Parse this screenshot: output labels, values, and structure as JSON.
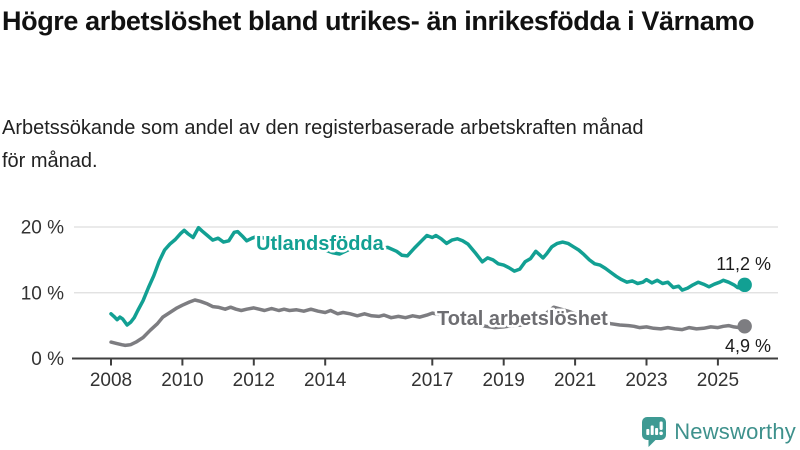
{
  "chart_data": {
    "type": "line",
    "title": "Högre arbetslöshet bland utrikes- än inrikesfödda i Värnamo",
    "subtitle": "Arbetssökande som andel av den registerbaserade arbetskraften månad för månad.",
    "xlabel": "",
    "ylabel": "",
    "xlim": [
      2008,
      2025.8
    ],
    "ylim": [
      0,
      23
    ],
    "grid": "horizontal",
    "legend_position": "inline-labels-on-lines",
    "x_ticks": [
      {
        "label": "2008",
        "year": 2008
      },
      {
        "label": "2010",
        "year": 2010
      },
      {
        "label": "2012",
        "year": 2012
      },
      {
        "label": "2014",
        "year": 2014
      },
      {
        "label": "2017",
        "year": 2017
      },
      {
        "label": "2019",
        "year": 2019
      },
      {
        "label": "2021",
        "year": 2021
      },
      {
        "label": "2023",
        "year": 2023
      },
      {
        "label": "2025",
        "year": 2025
      }
    ],
    "y_ticks": [
      {
        "label": "0 %",
        "value": 0
      },
      {
        "label": "10 %",
        "value": 10
      },
      {
        "label": "20 %",
        "value": 20
      }
    ],
    "series": [
      {
        "name": "Utlandsfödda",
        "color": "#12a093",
        "label_color": "#12a093",
        "end_label": "11,2 %",
        "end_value": 11.2,
        "points": [
          [
            2008.0,
            6.8
          ],
          [
            2008.08,
            6.4
          ],
          [
            2008.17,
            5.9
          ],
          [
            2008.25,
            6.3
          ],
          [
            2008.33,
            6.0
          ],
          [
            2008.45,
            5.1
          ],
          [
            2008.55,
            5.5
          ],
          [
            2008.65,
            6.2
          ],
          [
            2008.75,
            7.3
          ],
          [
            2008.9,
            8.8
          ],
          [
            2009.05,
            10.8
          ],
          [
            2009.2,
            12.6
          ],
          [
            2009.35,
            14.8
          ],
          [
            2009.5,
            16.5
          ],
          [
            2009.65,
            17.4
          ],
          [
            2009.8,
            18.1
          ],
          [
            2009.95,
            19.0
          ],
          [
            2010.05,
            19.5
          ],
          [
            2010.15,
            19.0
          ],
          [
            2010.3,
            18.4
          ],
          [
            2010.45,
            19.9
          ],
          [
            2010.55,
            19.4
          ],
          [
            2010.7,
            18.7
          ],
          [
            2010.85,
            18.0
          ],
          [
            2011.0,
            18.3
          ],
          [
            2011.15,
            17.7
          ],
          [
            2011.3,
            17.9
          ],
          [
            2011.45,
            19.2
          ],
          [
            2011.55,
            19.3
          ],
          [
            2011.7,
            18.5
          ],
          [
            2011.8,
            17.9
          ],
          [
            2011.95,
            18.3
          ],
          [
            2012.1,
            18.6
          ],
          [
            2012.3,
            18.3
          ],
          [
            2012.5,
            18.0
          ],
          [
            2012.7,
            17.7
          ],
          [
            2012.9,
            18.0
          ],
          [
            2013.1,
            17.8
          ],
          [
            2013.3,
            17.4
          ],
          [
            2013.5,
            17.2
          ],
          [
            2013.75,
            16.9
          ],
          [
            2014.0,
            16.5
          ],
          [
            2014.2,
            16.1
          ],
          [
            2014.4,
            15.9
          ],
          [
            2014.6,
            16.4
          ],
          [
            2014.8,
            16.9
          ],
          [
            2015.0,
            17.2
          ],
          [
            2015.25,
            16.9
          ],
          [
            2015.5,
            16.7
          ],
          [
            2015.75,
            16.9
          ],
          [
            2016.0,
            16.3
          ],
          [
            2016.15,
            15.7
          ],
          [
            2016.3,
            15.6
          ],
          [
            2016.5,
            16.8
          ],
          [
            2016.7,
            17.9
          ],
          [
            2016.85,
            18.7
          ],
          [
            2017.0,
            18.4
          ],
          [
            2017.1,
            18.7
          ],
          [
            2017.25,
            18.2
          ],
          [
            2017.4,
            17.5
          ],
          [
            2017.55,
            18.0
          ],
          [
            2017.7,
            18.2
          ],
          [
            2017.85,
            17.9
          ],
          [
            2018.0,
            17.4
          ],
          [
            2018.2,
            16.1
          ],
          [
            2018.4,
            14.7
          ],
          [
            2018.55,
            15.3
          ],
          [
            2018.7,
            15.0
          ],
          [
            2018.85,
            14.4
          ],
          [
            2019.0,
            14.2
          ],
          [
            2019.15,
            13.8
          ],
          [
            2019.3,
            13.3
          ],
          [
            2019.45,
            13.6
          ],
          [
            2019.6,
            14.7
          ],
          [
            2019.75,
            15.2
          ],
          [
            2019.9,
            16.3
          ],
          [
            2020.0,
            15.8
          ],
          [
            2020.1,
            15.3
          ],
          [
            2020.2,
            15.9
          ],
          [
            2020.35,
            17.0
          ],
          [
            2020.5,
            17.5
          ],
          [
            2020.65,
            17.7
          ],
          [
            2020.8,
            17.5
          ],
          [
            2020.95,
            17.0
          ],
          [
            2021.1,
            16.5
          ],
          [
            2021.25,
            15.8
          ],
          [
            2021.4,
            15.0
          ],
          [
            2021.55,
            14.4
          ],
          [
            2021.7,
            14.2
          ],
          [
            2021.85,
            13.7
          ],
          [
            2022.0,
            13.1
          ],
          [
            2022.15,
            12.5
          ],
          [
            2022.3,
            12.0
          ],
          [
            2022.45,
            11.6
          ],
          [
            2022.6,
            11.8
          ],
          [
            2022.75,
            11.4
          ],
          [
            2022.9,
            11.6
          ],
          [
            2023.0,
            12.0
          ],
          [
            2023.15,
            11.5
          ],
          [
            2023.3,
            11.9
          ],
          [
            2023.45,
            11.4
          ],
          [
            2023.6,
            11.6
          ],
          [
            2023.75,
            10.8
          ],
          [
            2023.9,
            11.0
          ],
          [
            2024.0,
            10.4
          ],
          [
            2024.15,
            10.7
          ],
          [
            2024.3,
            11.2
          ],
          [
            2024.45,
            11.6
          ],
          [
            2024.6,
            11.3
          ],
          [
            2024.75,
            10.9
          ],
          [
            2024.9,
            11.3
          ],
          [
            2025.05,
            11.6
          ],
          [
            2025.15,
            11.9
          ],
          [
            2025.3,
            11.6
          ],
          [
            2025.45,
            11.2
          ],
          [
            2025.55,
            10.8
          ],
          [
            2025.65,
            10.7
          ],
          [
            2025.75,
            11.2
          ]
        ]
      },
      {
        "name": "Total arbetslöshet",
        "color": "#7d7d81",
        "label_color": "#6e6e72",
        "end_label": "4,9 %",
        "end_value": 4.9,
        "points": [
          [
            2008.0,
            2.5
          ],
          [
            2008.15,
            2.3
          ],
          [
            2008.3,
            2.1
          ],
          [
            2008.4,
            2.0
          ],
          [
            2008.55,
            2.1
          ],
          [
            2008.7,
            2.5
          ],
          [
            2008.9,
            3.2
          ],
          [
            2009.1,
            4.3
          ],
          [
            2009.3,
            5.3
          ],
          [
            2009.45,
            6.3
          ],
          [
            2009.65,
            7.0
          ],
          [
            2009.85,
            7.7
          ],
          [
            2010.0,
            8.1
          ],
          [
            2010.2,
            8.6
          ],
          [
            2010.35,
            8.9
          ],
          [
            2010.5,
            8.7
          ],
          [
            2010.7,
            8.3
          ],
          [
            2010.85,
            7.9
          ],
          [
            2011.0,
            7.8
          ],
          [
            2011.2,
            7.5
          ],
          [
            2011.35,
            7.8
          ],
          [
            2011.5,
            7.5
          ],
          [
            2011.65,
            7.3
          ],
          [
            2011.8,
            7.5
          ],
          [
            2012.0,
            7.7
          ],
          [
            2012.15,
            7.5
          ],
          [
            2012.3,
            7.3
          ],
          [
            2012.5,
            7.6
          ],
          [
            2012.7,
            7.3
          ],
          [
            2012.85,
            7.5
          ],
          [
            2013.0,
            7.3
          ],
          [
            2013.2,
            7.4
          ],
          [
            2013.4,
            7.2
          ],
          [
            2013.6,
            7.5
          ],
          [
            2013.8,
            7.2
          ],
          [
            2014.0,
            7.0
          ],
          [
            2014.15,
            7.3
          ],
          [
            2014.35,
            6.8
          ],
          [
            2014.5,
            7.0
          ],
          [
            2014.7,
            6.8
          ],
          [
            2014.9,
            6.5
          ],
          [
            2015.1,
            6.8
          ],
          [
            2015.3,
            6.5
          ],
          [
            2015.5,
            6.4
          ],
          [
            2015.65,
            6.6
          ],
          [
            2015.85,
            6.2
          ],
          [
            2016.05,
            6.4
          ],
          [
            2016.25,
            6.2
          ],
          [
            2016.45,
            6.5
          ],
          [
            2016.65,
            6.3
          ],
          [
            2016.85,
            6.6
          ],
          [
            2017.0,
            6.9
          ],
          [
            2017.2,
            6.7
          ],
          [
            2017.4,
            6.5
          ],
          [
            2017.6,
            6.2
          ],
          [
            2017.8,
            5.9
          ],
          [
            2018.0,
            5.6
          ],
          [
            2018.25,
            5.2
          ],
          [
            2018.5,
            4.9
          ],
          [
            2018.75,
            4.7
          ],
          [
            2019.0,
            4.8
          ],
          [
            2019.25,
            5.0
          ],
          [
            2019.5,
            5.1
          ],
          [
            2019.75,
            5.4
          ],
          [
            2020.0,
            5.9
          ],
          [
            2020.2,
            6.9
          ],
          [
            2020.4,
            7.8
          ],
          [
            2020.6,
            7.5
          ],
          [
            2020.8,
            7.2
          ],
          [
            2021.0,
            6.8
          ],
          [
            2021.25,
            6.3
          ],
          [
            2021.5,
            5.9
          ],
          [
            2021.75,
            5.6
          ],
          [
            2022.0,
            5.3
          ],
          [
            2022.25,
            5.1
          ],
          [
            2022.5,
            5.0
          ],
          [
            2022.65,
            4.9
          ],
          [
            2022.8,
            4.7
          ],
          [
            2023.0,
            4.8
          ],
          [
            2023.2,
            4.6
          ],
          [
            2023.4,
            4.5
          ],
          [
            2023.6,
            4.7
          ],
          [
            2023.8,
            4.5
          ],
          [
            2024.0,
            4.4
          ],
          [
            2024.2,
            4.7
          ],
          [
            2024.4,
            4.5
          ],
          [
            2024.6,
            4.6
          ],
          [
            2024.8,
            4.8
          ],
          [
            2025.0,
            4.7
          ],
          [
            2025.15,
            4.9
          ],
          [
            2025.3,
            5.0
          ],
          [
            2025.45,
            4.8
          ],
          [
            2025.6,
            4.7
          ],
          [
            2025.75,
            4.9
          ]
        ]
      }
    ]
  },
  "footer": {
    "brand": "Newsworthy",
    "logo_icon": "bar-chart-speech-bubble-icon",
    "brand_color": "#3e918c"
  },
  "colors": {
    "accent_teal": "#12a093",
    "series_gray": "#7d7d81",
    "grid": "#dedede",
    "axis": "#3f3f3f",
    "tick_text": "#333333",
    "value_text": "#1c1c1c"
  }
}
